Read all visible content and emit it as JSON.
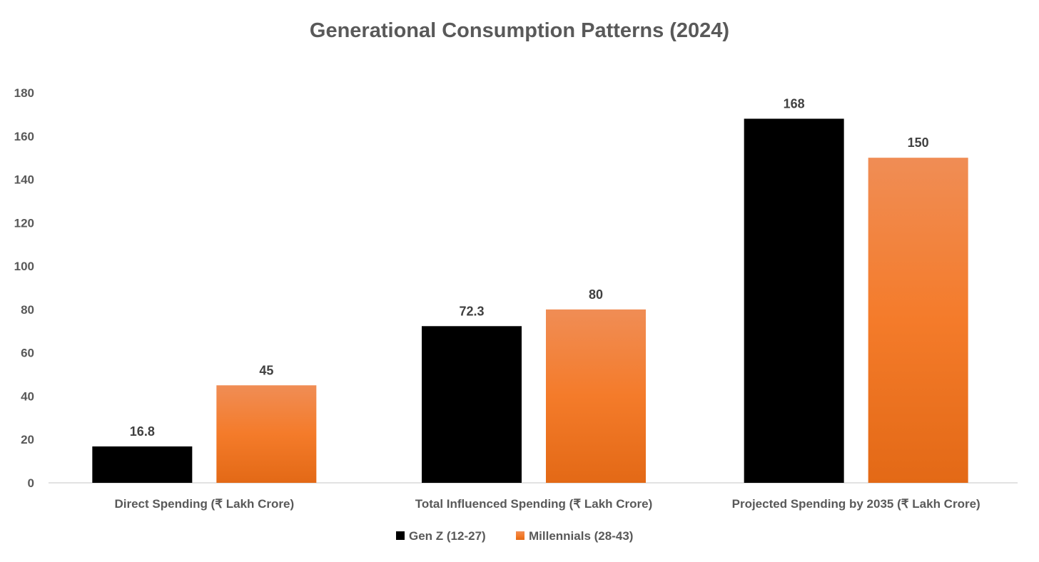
{
  "chart_data": {
    "type": "bar",
    "title": "Generational Consumption Patterns (2024)",
    "categories": [
      "Direct Spending (₹ Lakh Crore)",
      "Total Influenced Spending (₹ Lakh Crore)",
      "Projected Spending by 2035 (₹ Lakh Crore)"
    ],
    "series": [
      {
        "name": "Gen Z (12-27)",
        "values": [
          16.8,
          72.3,
          168
        ],
        "labels": [
          "16.8",
          "72.3",
          "168"
        ],
        "color": "#000000"
      },
      {
        "name": "Millennials (28-43)",
        "values": [
          45,
          80,
          150
        ],
        "labels": [
          "45",
          "80",
          "150"
        ],
        "color": "#F47B2A"
      }
    ],
    "xlabel": "",
    "ylabel": "",
    "ylim": [
      0,
      180
    ],
    "yticks": [
      "0",
      "20",
      "40",
      "60",
      "80",
      "100",
      "120",
      "140",
      "160",
      "180"
    ],
    "grid": false,
    "legend": "bottom-center"
  }
}
